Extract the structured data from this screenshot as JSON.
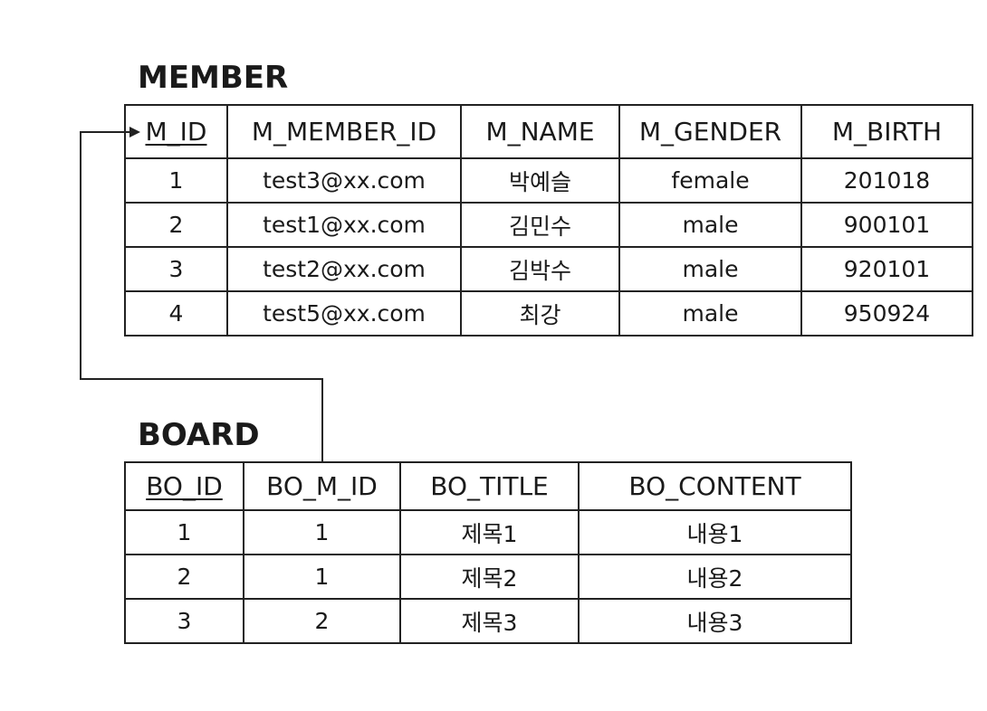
{
  "member": {
    "title": "MEMBER",
    "columns": [
      "M_ID",
      "M_MEMBER_ID",
      "M_NAME",
      "M_GENDER",
      "M_BIRTH"
    ],
    "rows": [
      [
        "1",
        "test3@xx.com",
        "박예슬",
        "female",
        "201018"
      ],
      [
        "2",
        "test1@xx.com",
        "김민수",
        "male",
        "900101"
      ],
      [
        "3",
        "test2@xx.com",
        "김박수",
        "male",
        "920101"
      ],
      [
        "4",
        "test5@xx.com",
        "최강",
        "male",
        "950924"
      ]
    ]
  },
  "board": {
    "title": "BOARD",
    "columns": [
      "BO_ID",
      "BO_M_ID",
      "BO_TITLE",
      "BO_CONTENT"
    ],
    "rows": [
      [
        "1",
        "1",
        "제목1",
        "내용1"
      ],
      [
        "2",
        "1",
        "제목2",
        "내용2"
      ],
      [
        "3",
        "2",
        "제목3",
        "내용3"
      ]
    ]
  },
  "relationship": {
    "from": "BOARD.BO_M_ID",
    "to": "MEMBER.M_ID"
  }
}
